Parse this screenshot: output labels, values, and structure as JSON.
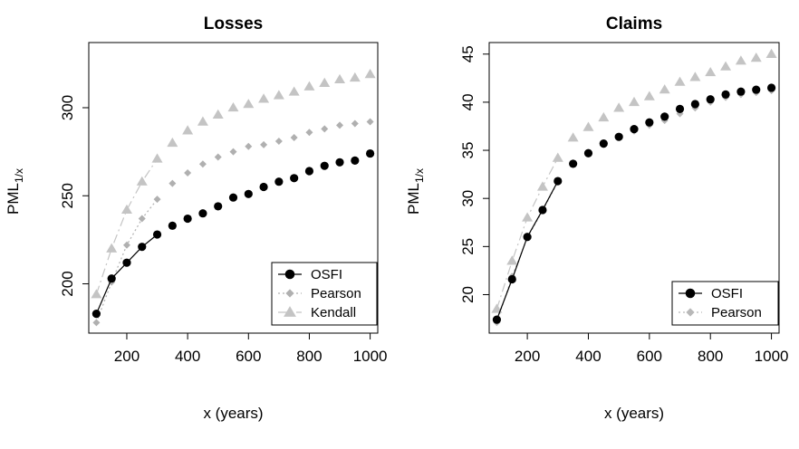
{
  "chart_data": [
    {
      "type": "scatter",
      "title": "Losses",
      "xlabel": "x (years)",
      "ylabel_main": "PML",
      "ylabel_sub": "1/x",
      "xlim": [
        75,
        1025
      ],
      "ylim": [
        172,
        337
      ],
      "xticks": [
        200,
        400,
        600,
        800,
        1000
      ],
      "yticks": [
        200,
        250,
        300
      ],
      "legend_position": "bottom-right",
      "x": [
        100,
        150,
        200,
        250,
        300,
        350,
        400,
        450,
        500,
        550,
        600,
        650,
        700,
        750,
        800,
        850,
        900,
        950,
        1000
      ],
      "series": [
        {
          "name": "OSFI",
          "color": "#000000",
          "marker": "circle",
          "line_dash": "solid",
          "values": [
            183,
            203,
            212,
            221,
            228,
            233,
            237,
            240,
            244,
            249,
            251,
            255,
            258,
            260,
            264,
            267,
            269,
            270,
            274
          ]
        },
        {
          "name": "Pearson",
          "color": "#b0b0b0",
          "marker": "diamond",
          "line_dash": "dotted",
          "values": [
            178,
            201,
            222,
            237,
            248,
            257,
            263,
            268,
            272,
            275,
            278,
            279,
            281,
            283,
            286,
            288,
            290,
            291,
            292
          ]
        },
        {
          "name": "Kendall",
          "color": "#c4c4c4",
          "marker": "triangle",
          "line_dash": "dashed",
          "values": [
            194,
            220,
            242,
            258,
            271,
            280,
            287,
            292,
            296,
            300,
            302,
            305,
            307,
            309,
            312,
            314,
            316,
            317,
            319
          ]
        }
      ]
    },
    {
      "type": "scatter",
      "title": "Claims",
      "xlabel": "x (years)",
      "ylabel_main": "PML",
      "ylabel_sub": "1/x",
      "xlim": [
        75,
        1025
      ],
      "ylim": [
        16,
        46.2
      ],
      "xticks": [
        200,
        400,
        600,
        800,
        1000
      ],
      "yticks": [
        20,
        25,
        30,
        35,
        40,
        45
      ],
      "legend_position": "bottom-right",
      "x": [
        100,
        150,
        200,
        250,
        300,
        350,
        400,
        450,
        500,
        550,
        600,
        650,
        700,
        750,
        800,
        850,
        900,
        950,
        1000
      ],
      "series": [
        {
          "name": "OSFI",
          "color": "#000000",
          "marker": "circle",
          "line_dash": "solid",
          "values": [
            17.4,
            21.6,
            26.0,
            28.8,
            31.8,
            33.6,
            34.7,
            35.7,
            36.4,
            37.2,
            37.9,
            38.5,
            39.3,
            39.8,
            40.3,
            40.8,
            41.1,
            41.3,
            41.5
          ]
        },
        {
          "name": "Pearson",
          "color": "#b8b8b8",
          "marker": "diamond",
          "line_dash": "dotted",
          "values": [
            17.1,
            21.9,
            25.9,
            28.7,
            31.7,
            33.7,
            34.7,
            35.6,
            36.4,
            37.0,
            37.6,
            38.1,
            38.8,
            39.4,
            40.0,
            40.5,
            40.8,
            41.0,
            41.2
          ]
        },
        {
          "name": "Kendall",
          "color": "#c4c4c4",
          "marker": "triangle",
          "line_dash": "dashed",
          "in_legend": false,
          "values": [
            18.5,
            23.5,
            28.0,
            31.2,
            34.2,
            36.3,
            37.4,
            38.4,
            39.4,
            40.0,
            40.6,
            41.3,
            42.1,
            42.6,
            43.1,
            43.7,
            44.3,
            44.6,
            45.0
          ]
        }
      ]
    }
  ]
}
